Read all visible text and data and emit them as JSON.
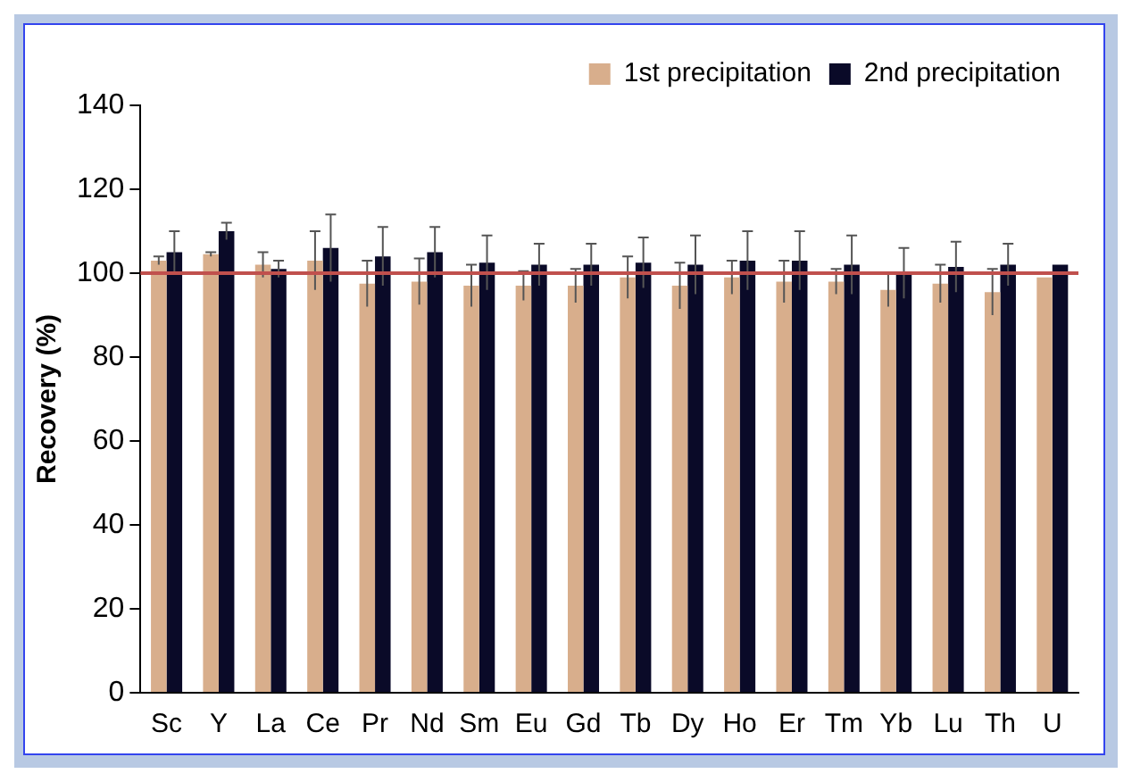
{
  "chart_data": {
    "type": "bar",
    "ylabel": "Recovery (%)",
    "categories": [
      "Sc",
      "Y",
      "La",
      "Ce",
      "Pr",
      "Nd",
      "Sm",
      "Eu",
      "Gd",
      "Tb",
      "Dy",
      "Ho",
      "Er",
      "Tm",
      "Yb",
      "Lu",
      "Th",
      "U"
    ],
    "series": [
      {
        "name": "1st precipitation",
        "color": "#d8ae8c",
        "values": [
          103,
          104.5,
          102,
          103,
          97.5,
          98,
          97,
          97,
          97,
          99,
          97,
          99,
          98,
          98,
          96,
          97.5,
          95.5,
          99
        ],
        "errors": [
          1,
          0.5,
          3,
          7,
          5.5,
          5.5,
          5,
          3.5,
          4,
          5,
          5.5,
          4,
          5,
          3,
          4,
          4.5,
          5.5,
          null
        ]
      },
      {
        "name": "2nd precipitation",
        "color": "#0a0a28",
        "values": [
          105,
          110,
          101,
          106,
          104,
          105,
          102.5,
          102,
          102,
          102.5,
          102,
          103,
          103,
          102,
          100,
          101.5,
          102,
          102
        ],
        "errors": [
          5,
          2,
          2,
          8,
          7,
          6,
          6.5,
          5,
          5,
          6,
          7,
          7,
          7,
          7,
          6,
          6,
          5,
          null
        ]
      }
    ],
    "ylim": [
      0,
      140
    ],
    "yticks": [
      0,
      20,
      40,
      60,
      80,
      100,
      120,
      140
    ],
    "grid": false,
    "legend": "top right",
    "ref_lines": [
      {
        "axis": "y",
        "value": 100,
        "color": "#c0504d"
      }
    ]
  }
}
